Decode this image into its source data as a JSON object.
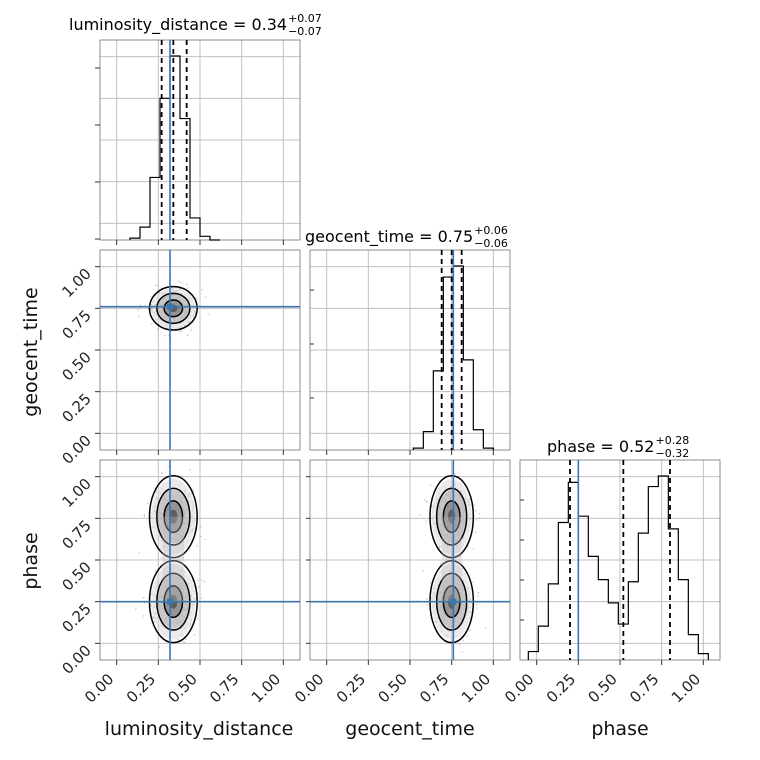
{
  "chart_data": {
    "type": "corner",
    "parameters": [
      "luminosity_distance",
      "geocent_time",
      "phase"
    ],
    "axis_labels": [
      "luminosity_distance",
      "geocent_time",
      "phase"
    ],
    "tick_labels": [
      "0.00",
      "0.25",
      "0.50",
      "0.75",
      "1.00"
    ],
    "axis_range": [
      -0.1,
      1.1
    ],
    "grid": true,
    "injection_values": [
      0.32,
      0.76,
      0.25
    ],
    "injection_color": "#3a76b0",
    "titles": [
      {
        "name": "luminosity_distance",
        "value": "0.34",
        "plus": "+0.07",
        "minus": "−0.07"
      },
      {
        "name": "geocent_time",
        "value": "0.75",
        "plus": "+0.06",
        "minus": "−0.06"
      },
      {
        "name": "phase",
        "value": "0.52",
        "plus": "+0.28",
        "minus": "−0.32"
      }
    ],
    "quantiles": [
      [
        0.27,
        0.34,
        0.42
      ],
      [
        0.69,
        0.75,
        0.81
      ],
      [
        0.2,
        0.52,
        0.8
      ]
    ],
    "histograms": [
      {
        "bin_edges": [
          0.08,
          0.14,
          0.2,
          0.26,
          0.32,
          0.38,
          0.44,
          0.5,
          0.56,
          0.62
        ],
        "counts": [
          0.01,
          0.07,
          0.34,
          0.77,
          1.0,
          0.66,
          0.12,
          0.02,
          0.0
        ]
      },
      {
        "bin_edges": [
          0.52,
          0.58,
          0.64,
          0.7,
          0.76,
          0.82,
          0.88,
          0.94,
          1.0
        ],
        "counts": [
          0.01,
          0.1,
          0.43,
          0.94,
          1.0,
          0.49,
          0.11,
          0.01
        ]
      },
      {
        "bin_edges": [
          -0.05,
          0.01,
          0.07,
          0.13,
          0.19,
          0.25,
          0.31,
          0.37,
          0.43,
          0.49,
          0.55,
          0.61,
          0.67,
          0.73,
          0.79,
          0.85,
          0.91,
          0.97,
          1.03
        ],
        "counts": [
          0.04,
          0.16,
          0.36,
          0.65,
          0.84,
          0.68,
          0.49,
          0.38,
          0.27,
          0.17,
          0.37,
          0.6,
          0.82,
          0.87,
          0.62,
          0.38,
          0.12,
          0.03
        ]
      }
    ],
    "posterior_modes": {
      "luminosity_distance": [
        0.34
      ],
      "geocent_time": [
        0.75
      ],
      "phase": [
        0.25,
        0.76
      ]
    },
    "contour_color": "#000000"
  }
}
